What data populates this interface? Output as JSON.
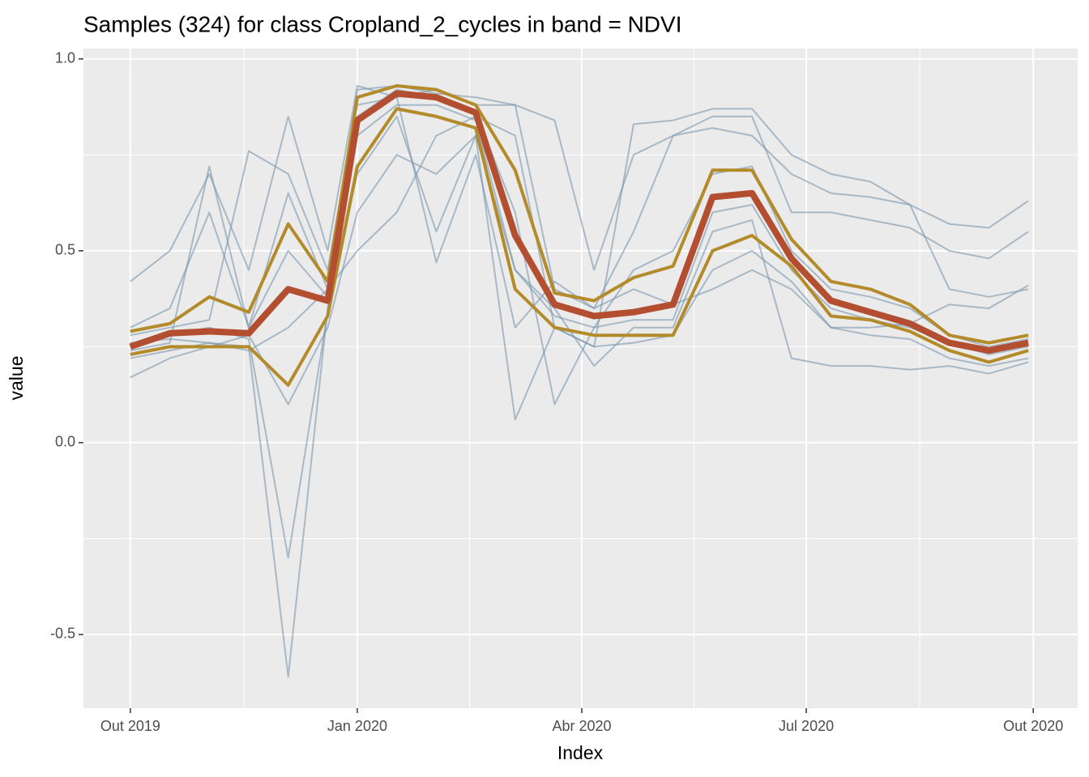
{
  "chart_data": {
    "type": "line",
    "title": "Samples (324) for class Cropland_2_cycles in band = NDVI",
    "x_label": "Index",
    "y_label": "value",
    "x": [
      "2019-10-01",
      "2019-10-17",
      "2019-11-02",
      "2019-11-18",
      "2019-12-04",
      "2019-12-20",
      "2020-01-01",
      "2020-01-17",
      "2020-02-02",
      "2020-02-18",
      "2020-03-05",
      "2020-03-21",
      "2020-04-06",
      "2020-04-22",
      "2020-05-08",
      "2020-05-24",
      "2020-06-09",
      "2020-06-25",
      "2020-07-11",
      "2020-07-27",
      "2020-08-12",
      "2020-08-28",
      "2020-09-13",
      "2020-09-29"
    ],
    "xlim": [
      "2019-09-12",
      "2020-10-19"
    ],
    "xticks": [
      {
        "value": "2019-10-01",
        "label": "Out 2019"
      },
      {
        "value": "2020-01-01",
        "label": "Jan 2020"
      },
      {
        "value": "2020-04-01",
        "label": "Abr 2020"
      },
      {
        "value": "2020-07-01",
        "label": "Jul 2020"
      },
      {
        "value": "2020-10-01",
        "label": "Out 2020"
      }
    ],
    "ylim": [
      -0.692,
      1.027
    ],
    "yticks": [
      -0.5,
      {
        "value": 0,
        "label": "0.0"
      },
      0.5,
      {
        "value": 1,
        "label": "1.0"
      }
    ],
    "grid": true,
    "sample_color": "#7a96ae",
    "samples": [
      [
        0.22,
        0.24,
        0.26,
        0.25,
        -0.61,
        0.35,
        0.8,
        0.88,
        0.88,
        0.84,
        0.45,
        0.33,
        0.3,
        0.32,
        0.32,
        0.6,
        0.62,
        0.45,
        0.35,
        0.32,
        0.3,
        0.26,
        0.23,
        0.25
      ],
      [
        0.42,
        0.5,
        0.7,
        0.45,
        0.85,
        0.5,
        0.93,
        0.9,
        0.92,
        0.88,
        0.88,
        0.4,
        0.35,
        0.55,
        0.8,
        0.85,
        0.85,
        0.6,
        0.6,
        0.58,
        0.56,
        0.5,
        0.48,
        0.55
      ],
      [
        0.17,
        0.22,
        0.25,
        0.28,
        0.1,
        0.3,
        0.6,
        0.75,
        0.7,
        0.8,
        0.06,
        0.3,
        0.25,
        0.26,
        0.28,
        0.45,
        0.5,
        0.42,
        0.3,
        0.28,
        0.27,
        0.22,
        0.2,
        0.22
      ],
      [
        0.3,
        0.35,
        0.6,
        0.3,
        0.65,
        0.4,
        0.92,
        0.93,
        0.91,
        0.9,
        0.88,
        0.84,
        0.45,
        0.75,
        0.8,
        0.82,
        0.8,
        0.7,
        0.65,
        0.64,
        0.62,
        0.57,
        0.56,
        0.63
      ],
      [
        0.25,
        0.28,
        0.3,
        0.27,
        -0.3,
        0.34,
        0.85,
        0.92,
        0.9,
        0.86,
        0.6,
        0.1,
        0.3,
        0.45,
        0.5,
        0.7,
        0.72,
        0.5,
        0.4,
        0.38,
        0.35,
        0.28,
        0.25,
        0.27
      ],
      [
        0.24,
        0.26,
        0.72,
        0.3,
        0.5,
        0.38,
        0.7,
        0.85,
        0.55,
        0.8,
        0.45,
        0.35,
        0.2,
        0.3,
        0.3,
        0.55,
        0.58,
        0.22,
        0.2,
        0.2,
        0.19,
        0.2,
        0.18,
        0.21
      ],
      [
        0.28,
        0.3,
        0.32,
        0.76,
        0.7,
        0.45,
        0.88,
        0.9,
        0.47,
        0.75,
        0.3,
        0.42,
        0.35,
        0.4,
        0.36,
        0.4,
        0.45,
        0.4,
        0.3,
        0.3,
        0.31,
        0.36,
        0.35,
        0.41
      ],
      [
        0.26,
        0.27,
        0.26,
        0.24,
        0.3,
        0.4,
        0.5,
        0.6,
        0.8,
        0.85,
        0.8,
        0.3,
        0.25,
        0.83,
        0.84,
        0.87,
        0.87,
        0.75,
        0.7,
        0.68,
        0.62,
        0.4,
        0.38,
        0.4
      ]
    ],
    "quantiles": [
      {
        "color": "#b38b2a",
        "values": [
          0.29,
          0.31,
          0.38,
          0.34,
          0.57,
          0.42,
          0.9,
          0.93,
          0.92,
          0.88,
          0.71,
          0.39,
          0.37,
          0.43,
          0.46,
          0.71,
          0.71,
          0.53,
          0.42,
          0.4,
          0.36,
          0.28,
          0.26,
          0.28
        ]
      },
      {
        "color": "#b38b2a",
        "values": [
          0.23,
          0.25,
          0.25,
          0.25,
          0.15,
          0.33,
          0.72,
          0.87,
          0.85,
          0.82,
          0.4,
          0.3,
          0.28,
          0.28,
          0.28,
          0.5,
          0.54,
          0.46,
          0.33,
          0.32,
          0.29,
          0.24,
          0.21,
          0.24
        ]
      }
    ],
    "median": {
      "color": "#b34f30",
      "values": [
        0.25,
        0.285,
        0.29,
        0.285,
        0.4,
        0.37,
        0.84,
        0.91,
        0.9,
        0.86,
        0.54,
        0.36,
        0.33,
        0.34,
        0.36,
        0.64,
        0.65,
        0.48,
        0.37,
        0.34,
        0.31,
        0.26,
        0.24,
        0.26
      ]
    }
  }
}
